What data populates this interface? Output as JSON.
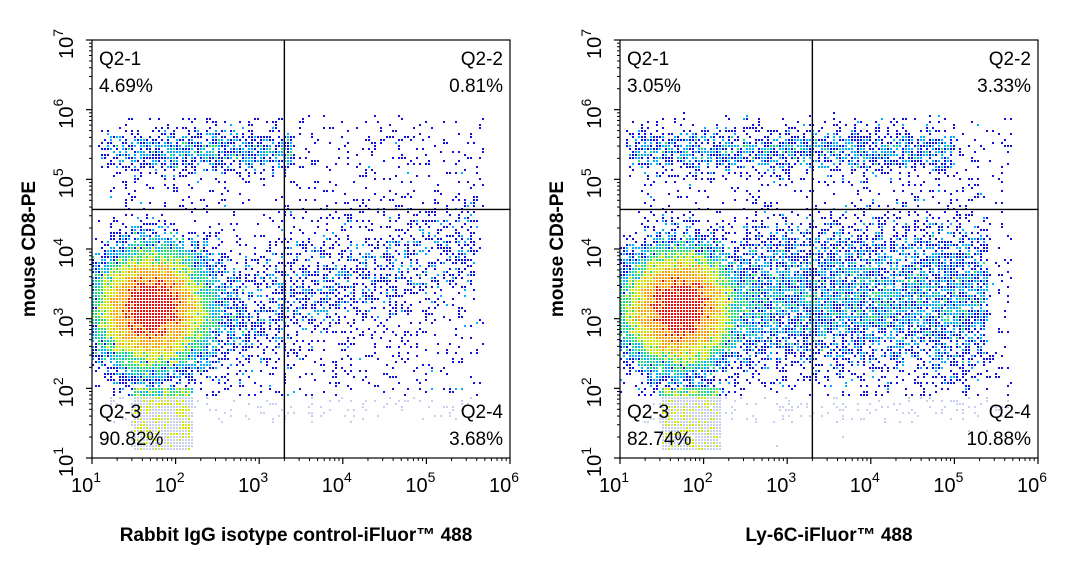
{
  "chart_data": [
    {
      "type": "scatter",
      "xlabel": "Rabbit IgG isotype control-iFluor™ 488",
      "ylabel": "mouse CD8-PE",
      "x_scale": "log",
      "y_scale": "log",
      "xlim": [
        10,
        1000000
      ],
      "ylim": [
        10,
        10000000
      ],
      "x_tick_bases": [
        "10",
        "10",
        "10",
        "10",
        "10",
        "10"
      ],
      "x_tick_exps": [
        "1",
        "2",
        "3",
        "4",
        "5",
        "6"
      ],
      "y_tick_bases": [
        "10",
        "10",
        "10",
        "10",
        "10",
        "10",
        "10"
      ],
      "y_tick_exps": [
        "1",
        "2",
        "3",
        "4",
        "5",
        "6",
        "7"
      ],
      "gate": {
        "x": 2000,
        "y": 37000
      },
      "quadrants": [
        {
          "name": "Q2-1",
          "percent": "4.69%"
        },
        {
          "name": "Q2-2",
          "percent": "0.81%"
        },
        {
          "name": "Q2-3",
          "percent": "90.82%"
        },
        {
          "name": "Q2-4",
          "percent": "3.68%"
        }
      ],
      "color_scale": [
        "#1010e0",
        "#00b0ff",
        "#20e070",
        "#d0e800",
        "#ff9a00",
        "#e81010"
      ]
    },
    {
      "type": "scatter",
      "xlabel": "Ly-6C-iFluor™ 488",
      "ylabel": "mouse CD8-PE",
      "x_scale": "log",
      "y_scale": "log",
      "xlim": [
        10,
        1000000
      ],
      "ylim": [
        10,
        10000000
      ],
      "x_tick_bases": [
        "10",
        "10",
        "10",
        "10",
        "10",
        "10"
      ],
      "x_tick_exps": [
        "1",
        "2",
        "3",
        "4",
        "5",
        "6"
      ],
      "y_tick_bases": [
        "10",
        "10",
        "10",
        "10",
        "10",
        "10",
        "10"
      ],
      "y_tick_exps": [
        "1",
        "2",
        "3",
        "4",
        "5",
        "6",
        "7"
      ],
      "gate": {
        "x": 2000,
        "y": 37000
      },
      "quadrants": [
        {
          "name": "Q2-1",
          "percent": "3.05%"
        },
        {
          "name": "Q2-2",
          "percent": "3.33%"
        },
        {
          "name": "Q2-3",
          "percent": "82.74%"
        },
        {
          "name": "Q2-4",
          "percent": "10.88%"
        }
      ],
      "color_scale": [
        "#1010e0",
        "#00b0ff",
        "#20e070",
        "#d0e800",
        "#ff9a00",
        "#e81010"
      ]
    }
  ]
}
